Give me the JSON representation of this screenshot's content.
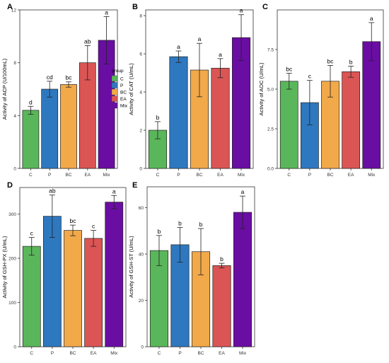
{
  "chart_data": [
    {
      "panel": "A",
      "type": "bar",
      "categories": [
        "C",
        "P",
        "BC",
        "EA",
        "Mix"
      ],
      "values": [
        4.4,
        6.0,
        6.35,
        8.0,
        9.7
      ],
      "errors": [
        0.3,
        0.6,
        0.2,
        1.3,
        1.8
      ],
      "letters": [
        "d",
        "cd",
        "bc",
        "ab",
        "a"
      ],
      "ylabel": "Activity of ACP (U/100mL)",
      "ylim": [
        0,
        12
      ],
      "yticks": [
        0,
        4,
        8,
        12
      ]
    },
    {
      "panel": "B",
      "type": "bar",
      "categories": [
        "C",
        "P",
        "BC",
        "EA",
        "Mix"
      ],
      "values": [
        2.0,
        5.85,
        5.15,
        5.25,
        6.85
      ],
      "errors": [
        0.45,
        0.3,
        1.4,
        0.5,
        1.2
      ],
      "letters": [
        "b",
        "a",
        "a",
        "a",
        "a"
      ],
      "ylabel": "Activity of CAT (U/mL)",
      "ylim": [
        0,
        8.3
      ],
      "yticks": [
        0,
        2,
        4,
        6,
        8
      ]
    },
    {
      "panel": "C",
      "type": "bar",
      "categories": [
        "C",
        "P",
        "BC",
        "EA",
        "Mix"
      ],
      "values": [
        5.5,
        4.15,
        5.5,
        6.1,
        8.0
      ],
      "errors": [
        0.5,
        1.4,
        1.0,
        0.35,
        1.2
      ],
      "letters": [
        "bc",
        "c",
        "bc",
        "b",
        "a"
      ],
      "ylabel": "Activity of AOC (U/mL)",
      "ylim": [
        0,
        10
      ],
      "yticks": [
        0.0,
        2.5,
        5.0,
        7.5
      ]
    },
    {
      "panel": "D",
      "type": "bar",
      "categories": [
        "C",
        "P",
        "BC",
        "EA",
        "Mix"
      ],
      "values": [
        227,
        295,
        263,
        245,
        327
      ],
      "errors": [
        20,
        48,
        12,
        18,
        15
      ],
      "letters": [
        "c",
        "ab",
        "bc",
        "c",
        "a"
      ],
      "ylabel": "Activity of GSH-PX (U/mL)",
      "ylim": [
        0,
        360
      ],
      "yticks": [
        0,
        100,
        200,
        300
      ]
    },
    {
      "panel": "E",
      "type": "bar",
      "categories": [
        "C",
        "P",
        "BC",
        "EA",
        "Mix"
      ],
      "values": [
        41.5,
        44,
        41,
        35,
        58
      ],
      "errors": [
        6.5,
        7.5,
        10,
        1.0,
        7
      ],
      "letters": [
        "b",
        "b",
        "b",
        "b",
        "a"
      ],
      "ylabel": "Activity of GSH-ST (U/mL)",
      "ylim": [
        0,
        69
      ],
      "yticks": [
        0,
        20,
        40,
        60
      ]
    }
  ],
  "legend": {
    "title": "group",
    "items": [
      {
        "label": "C",
        "color": "#5ab65a"
      },
      {
        "label": "P",
        "color": "#2e78bf"
      },
      {
        "label": "BC",
        "color": "#f2a94a"
      },
      {
        "label": "EA",
        "color": "#db5555"
      },
      {
        "label": "Mix",
        "color": "#6a0da3"
      }
    ]
  },
  "colors": {
    "C": "#5ab65a",
    "P": "#2e78bf",
    "BC": "#f2a94a",
    "EA": "#db5555",
    "Mix": "#6a0da3"
  }
}
